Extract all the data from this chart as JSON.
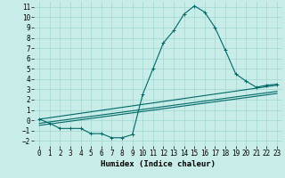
{
  "xlabel": "Humidex (Indice chaleur)",
  "bg_color": "#c8ece8",
  "line_color": "#006868",
  "grid_color": "#a0d8d0",
  "xlim": [
    -0.5,
    23.5
  ],
  "ylim": [
    -2.5,
    11.5
  ],
  "xticks": [
    0,
    1,
    2,
    3,
    4,
    5,
    6,
    7,
    8,
    9,
    10,
    11,
    12,
    13,
    14,
    15,
    16,
    17,
    18,
    19,
    20,
    21,
    22,
    23
  ],
  "yticks": [
    -2,
    -1,
    0,
    1,
    2,
    3,
    4,
    5,
    6,
    7,
    8,
    9,
    10,
    11
  ],
  "curve1_x": [
    0,
    1,
    2,
    3,
    4,
    5,
    6,
    7,
    8,
    9,
    10,
    11,
    12,
    13,
    14,
    15,
    16,
    17,
    18,
    19,
    20,
    21,
    22,
    23
  ],
  "curve1_y": [
    0.1,
    -0.3,
    -0.8,
    -0.8,
    -0.8,
    -1.3,
    -1.3,
    -1.7,
    -1.7,
    -1.4,
    2.5,
    5.0,
    7.5,
    8.7,
    10.3,
    11.1,
    10.5,
    9.0,
    6.8,
    4.5,
    3.8,
    3.2,
    3.4,
    3.5
  ],
  "line2_x": [
    0,
    23
  ],
  "line2_y": [
    0.1,
    3.4
  ],
  "line3_x": [
    0,
    23
  ],
  "line3_y": [
    -0.3,
    2.8
  ],
  "line4_x": [
    0,
    23
  ],
  "line4_y": [
    -0.5,
    2.6
  ],
  "tick_fontsize": 5.5,
  "label_fontsize": 6.5
}
